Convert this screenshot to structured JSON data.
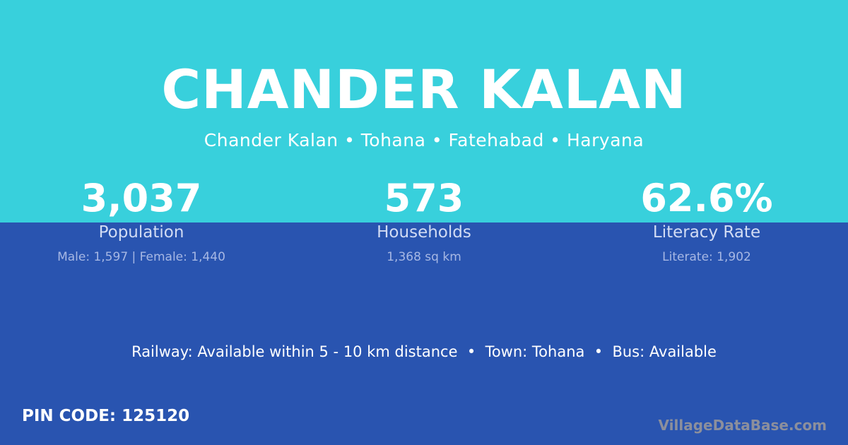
{
  "title": "CHANDER KALAN",
  "subtitle": "Chander Kalan • Tohana • Fatehabad • Haryana",
  "stats": [
    {
      "value": "3,037",
      "label": "Population",
      "detail": "Male: 1,597 | Female: 1,440"
    },
    {
      "value": "573",
      "label": "Households",
      "detail": "1,368 sq km"
    },
    {
      "value": "62.6%",
      "label": "Literacy Rate",
      "detail": "Literate: 1,902"
    }
  ],
  "info": "Railway: Available within 5 - 10 km distance  •  Town: Tohana  •  Bus: Available",
  "pin": "PIN CODE: 125120",
  "logo": "VillageDataBase.com",
  "colors": {
    "top": "#38d0dc",
    "bottom": "#2954b0"
  }
}
